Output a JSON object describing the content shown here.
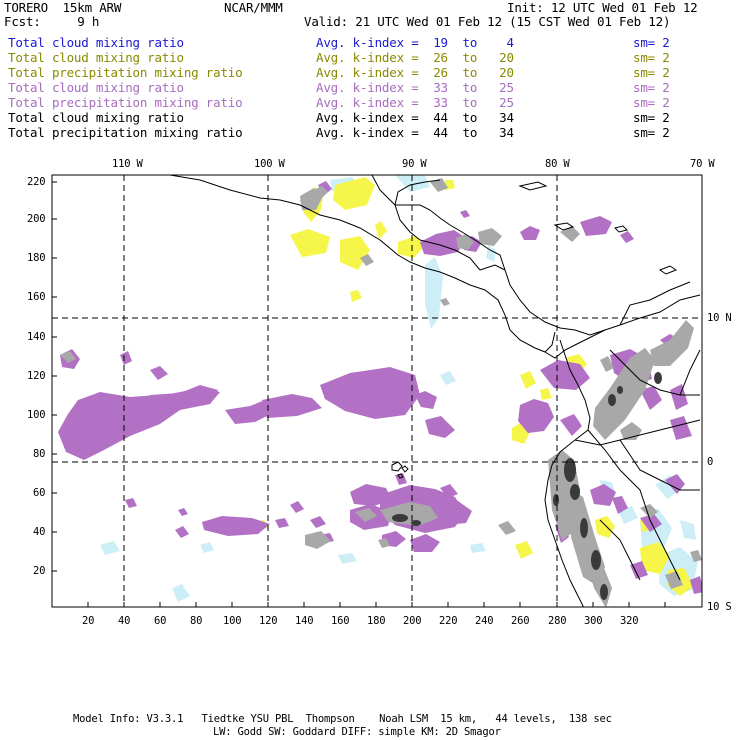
{
  "header": {
    "model": "TORERO  15km ARW",
    "org": "NCAR/MMM",
    "init": "Init: 12 UTC Wed 01 Feb 12",
    "fcst": "Fcst:     9 h",
    "valid": "Valid: 21 UTC Wed 01 Feb 12 (15 CST Wed 01 Feb 12)"
  },
  "legend": [
    {
      "field": "Total cloud mixing ratio",
      "stat": "Avg. k-index =  19  to    4",
      "sm": "sm= 2",
      "color": "#1a1ad0"
    },
    {
      "field": "Total cloud mixing ratio",
      "stat": "Avg. k-index =  26  to   20",
      "sm": "sm= 2",
      "color": "#8a8a00"
    },
    {
      "field": "Total precipitation mixing ratio",
      "stat": "Avg. k-index =  26  to   20",
      "sm": "sm= 2",
      "color": "#8a8a00"
    },
    {
      "field": "Total cloud mixing ratio",
      "stat": "Avg. k-index =  33  to   25",
      "sm": "sm= 2",
      "color": "#a86cc0"
    },
    {
      "field": "Total precipitation mixing ratio",
      "stat": "Avg. k-index =  33  to   25",
      "sm": "sm= 2",
      "color": "#a86cc0"
    },
    {
      "field": "Total cloud mixing ratio",
      "stat": "Avg. k-index =  44  to   34",
      "sm": "sm= 2",
      "color": "#000000"
    },
    {
      "field": "Total precipitation mixing ratio",
      "stat": "Avg. k-index =  44  to   34",
      "sm": "sm= 2",
      "color": "#000000"
    }
  ],
  "map": {
    "top_lon_labels": [
      "110 W",
      "100 W",
      "90 W",
      "80 W",
      "70 W"
    ],
    "right_lat_labels": [
      "10 N",
      "0",
      "10 S"
    ],
    "left_grid_labels": [
      "220",
      "200",
      "180",
      "160",
      "140",
      "120",
      "100",
      "80",
      "60",
      "40",
      "20"
    ],
    "bottom_grid_labels": [
      "20",
      "40",
      "60",
      "80",
      "100",
      "120",
      "140",
      "160",
      "180",
      "200",
      "220",
      "240",
      "260",
      "280",
      "300",
      "320"
    ],
    "colors": {
      "cyan": "#cdeef7",
      "yellow": "#f5f54a",
      "purple": "#b271c4",
      "gray": "#a8a8a8",
      "dark": "#3a3a3a"
    }
  },
  "footer": {
    "line1": "Model Info: V3.3.1   Tiedtke YSU PBL  Thompson    Noah LSM  15 km,   44 levels,  138 sec",
    "line2": "LW: Godd SW: Goddard DIFF: simple KM: 2D Smagor"
  }
}
